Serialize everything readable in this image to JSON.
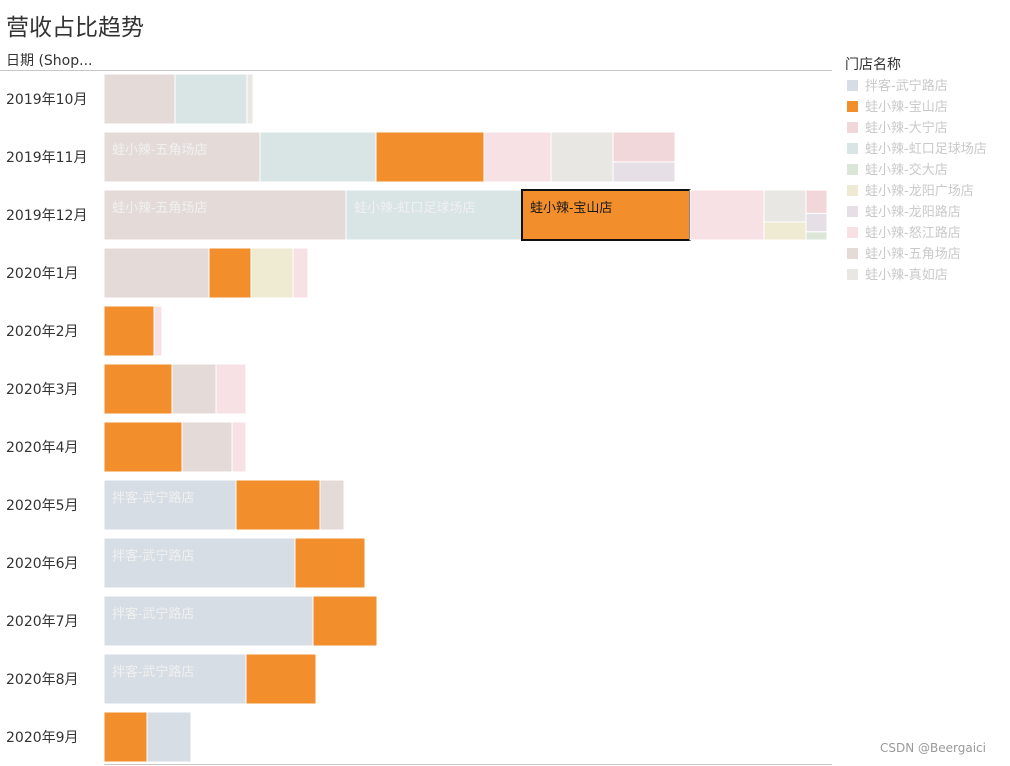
{
  "header": {
    "title": "营收占比趋势",
    "row_header": "日期 (Shop..."
  },
  "legend": {
    "title": "门店名称",
    "items": [
      {
        "name": "拌客-武宁路店",
        "color": "#d6dde4"
      },
      {
        "name": "蛙小辣-宝山店",
        "color": "#f28e2b"
      },
      {
        "name": "蛙小辣-大宁店",
        "color": "#f1d7d9"
      },
      {
        "name": "蛙小辣-虹口足球场店",
        "color": "#d9e5e4"
      },
      {
        "name": "蛙小辣-交大店",
        "color": "#dbe5d8"
      },
      {
        "name": "蛙小辣-龙阳广场店",
        "color": "#efead2"
      },
      {
        "name": "蛙小辣-龙阳路店",
        "color": "#e6dfe6"
      },
      {
        "name": "蛙小辣-怒江路店",
        "color": "#f7e1e5"
      },
      {
        "name": "蛙小辣-五角场店",
        "color": "#e4dbd8"
      },
      {
        "name": "蛙小辣-真如店",
        "color": "#e8e7e4"
      }
    ]
  },
  "chart_data": {
    "type": "bar",
    "subtype": "stacked-treemap-rows",
    "value_unit": "relative share (pixel-proportional estimate)",
    "highlighted": {
      "row": "2019年12月",
      "store": "蛙小辣-宝山店"
    },
    "rows": [
      {
        "label": "2019年10月",
        "segments": [
          {
            "store": "蛙小辣-五角场店",
            "value": 71,
            "label": ""
          },
          {
            "store": "蛙小辣-虹口足球场店",
            "value": 72,
            "label": ""
          },
          {
            "store": "蛙小辣-真如店",
            "value": 6,
            "label": ""
          }
        ]
      },
      {
        "label": "2019年11月",
        "segments": [
          {
            "store": "蛙小辣-五角场店",
            "value": 156,
            "label": "蛙小辣-五角场店"
          },
          {
            "store": "蛙小辣-虹口足球场店",
            "value": 116,
            "label": ""
          },
          {
            "store": "蛙小辣-宝山店",
            "value": 108,
            "label": ""
          },
          {
            "store": "蛙小辣-怒江路店",
            "value": 67,
            "label": ""
          },
          {
            "store": "蛙小辣-真如店",
            "value": 62,
            "label": ""
          },
          {
            "store": "__stack__",
            "value": 62,
            "stack": [
              {
                "store": "蛙小辣-大宁店",
                "value": 30
              },
              {
                "store": "蛙小辣-龙阳路店",
                "value": 20
              }
            ]
          }
        ]
      },
      {
        "label": "2019年12月",
        "segments": [
          {
            "store": "蛙小辣-五角场店",
            "value": 242,
            "label": "蛙小辣-五角场店"
          },
          {
            "store": "蛙小辣-虹口足球场店",
            "value": 176,
            "label": "蛙小辣-虹口足球场店"
          },
          {
            "store": "蛙小辣-宝山店",
            "value": 168,
            "label": "蛙小辣-宝山店"
          },
          {
            "store": "蛙小辣-怒江路店",
            "value": 74,
            "label": ""
          },
          {
            "store": "__stack__",
            "value": 42,
            "stack": [
              {
                "store": "蛙小辣-真如店",
                "value": 32
              },
              {
                "store": "蛙小辣-龙阳广场店",
                "value": 18
              }
            ]
          },
          {
            "store": "__stack__",
            "value": 21,
            "stack": [
              {
                "store": "蛙小辣-大宁店",
                "value": 23
              },
              {
                "store": "蛙小辣-龙阳路店",
                "value": 18
              },
              {
                "store": "蛙小辣-交大店",
                "value": 8
              }
            ]
          }
        ]
      },
      {
        "label": "2020年1月",
        "segments": [
          {
            "store": "蛙小辣-五角场店",
            "value": 105,
            "label": ""
          },
          {
            "store": "蛙小辣-宝山店",
            "value": 42,
            "label": ""
          },
          {
            "store": "蛙小辣-龙阳广场店",
            "value": 42,
            "label": ""
          },
          {
            "store": "蛙小辣-怒江路店",
            "value": 15,
            "label": ""
          }
        ]
      },
      {
        "label": "2020年2月",
        "segments": [
          {
            "store": "蛙小辣-宝山店",
            "value": 50,
            "label": ""
          },
          {
            "store": "蛙小辣-怒江路店",
            "value": 8,
            "label": ""
          }
        ]
      },
      {
        "label": "2020年3月",
        "segments": [
          {
            "store": "蛙小辣-宝山店",
            "value": 68,
            "label": ""
          },
          {
            "store": "蛙小辣-五角场店",
            "value": 44,
            "label": ""
          },
          {
            "store": "蛙小辣-怒江路店",
            "value": 30,
            "label": ""
          }
        ]
      },
      {
        "label": "2020年4月",
        "segments": [
          {
            "store": "蛙小辣-宝山店",
            "value": 78,
            "label": ""
          },
          {
            "store": "蛙小辣-五角场店",
            "value": 50,
            "label": ""
          },
          {
            "store": "蛙小辣-怒江路店",
            "value": 14,
            "label": ""
          }
        ]
      },
      {
        "label": "2020年5月",
        "segments": [
          {
            "store": "拌客-武宁路店",
            "value": 132,
            "label": "拌客-武宁路店"
          },
          {
            "store": "蛙小辣-宝山店",
            "value": 84,
            "label": ""
          },
          {
            "store": "蛙小辣-五角场店",
            "value": 24,
            "label": ""
          }
        ]
      },
      {
        "label": "2020年6月",
        "segments": [
          {
            "store": "拌客-武宁路店",
            "value": 191,
            "label": "拌客-武宁路店"
          },
          {
            "store": "蛙小辣-宝山店",
            "value": 70,
            "label": ""
          }
        ]
      },
      {
        "label": "2020年7月",
        "segments": [
          {
            "store": "拌客-武宁路店",
            "value": 209,
            "label": "拌客-武宁路店"
          },
          {
            "store": "蛙小辣-宝山店",
            "value": 64,
            "label": ""
          }
        ]
      },
      {
        "label": "2020年8月",
        "segments": [
          {
            "store": "拌客-武宁路店",
            "value": 142,
            "label": "拌客-武宁路店"
          },
          {
            "store": "蛙小辣-宝山店",
            "value": 70,
            "label": ""
          }
        ]
      },
      {
        "label": "2020年9月",
        "segments": [
          {
            "store": "蛙小辣-宝山店",
            "value": 43,
            "label": ""
          },
          {
            "store": "拌客-武宁路店",
            "value": 44,
            "label": ""
          }
        ]
      }
    ]
  },
  "footer": {
    "credit": "CSDN @Beergaici"
  }
}
